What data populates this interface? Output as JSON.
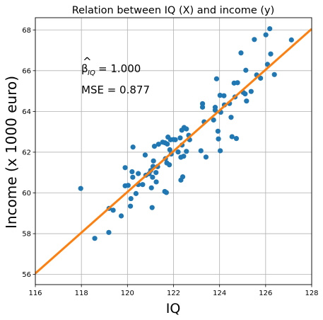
{
  "chart_data": {
    "type": "scatter",
    "title": "Relation between IQ (X) and income (y)",
    "xlabel": "IQ",
    "ylabel": "Income (x 1000 euro)",
    "xlim": [
      116,
      128
    ],
    "ylim": [
      55.5,
      68.6
    ],
    "xticks": [
      "116",
      "118",
      "120",
      "122",
      "124",
      "126",
      "128"
    ],
    "yticks": [
      "56",
      "58",
      "60",
      "62",
      "64",
      "66",
      "68"
    ],
    "xtick_values": [
      116,
      118,
      120,
      122,
      124,
      126,
      128
    ],
    "ytick_values": [
      56,
      58,
      60,
      62,
      64,
      66,
      68
    ],
    "grid": true,
    "annotations": {
      "beta_prefix": "β",
      "beta_hat": "^",
      "beta_sub": "IQ",
      "beta_value": " = 1.000",
      "mse": "MSE = 0.877"
    },
    "fit_line": {
      "color": "#ff7f0e",
      "points": [
        [
          116,
          56.05
        ],
        [
          128,
          68.05
        ]
      ]
    },
    "point_color": "#1f77b4",
    "points": [
      [
        117.97,
        60.22
      ],
      [
        118.58,
        57.77
      ],
      [
        119.19,
        58.06
      ],
      [
        119.2,
        59.24
      ],
      [
        119.38,
        59.15
      ],
      [
        119.73,
        58.87
      ],
      [
        119.9,
        61.24
      ],
      [
        119.9,
        60.35
      ],
      [
        120.03,
        60.37
      ],
      [
        120.13,
        59.35
      ],
      [
        120.15,
        59.72
      ],
      [
        120.2,
        61.04
      ],
      [
        120.23,
        60.77
      ],
      [
        120.24,
        62.25
      ],
      [
        120.37,
        59.97
      ],
      [
        120.47,
        60.41
      ],
      [
        120.47,
        60.95
      ],
      [
        120.66,
        60.41
      ],
      [
        120.77,
        61.86
      ],
      [
        120.8,
        60.87
      ],
      [
        120.94,
        60.94
      ],
      [
        121.01,
        61.1
      ],
      [
        121.04,
        60.25
      ],
      [
        121.07,
        59.28
      ],
      [
        121.09,
        60.77
      ],
      [
        121.11,
        61.3
      ],
      [
        121.13,
        61.57
      ],
      [
        121.17,
        62.29
      ],
      [
        121.24,
        61.0
      ],
      [
        121.25,
        60.54
      ],
      [
        121.31,
        61.29
      ],
      [
        121.35,
        62.39
      ],
      [
        121.53,
        62.49
      ],
      [
        121.62,
        60.07
      ],
      [
        121.63,
        62.46
      ],
      [
        121.65,
        61.68
      ],
      [
        121.69,
        60.02
      ],
      [
        121.71,
        61.47
      ],
      [
        121.73,
        62.4
      ],
      [
        121.76,
        62.74
      ],
      [
        121.82,
        61.38
      ],
      [
        121.84,
        62.12
      ],
      [
        121.87,
        62.61
      ],
      [
        121.9,
        61.91
      ],
      [
        122.0,
        62.62
      ],
      [
        122.08,
        62.61
      ],
      [
        122.2,
        62.01
      ],
      [
        122.29,
        62.7
      ],
      [
        122.32,
        61.75
      ],
      [
        122.32,
        60.63
      ],
      [
        122.36,
        63.08
      ],
      [
        122.37,
        62.35
      ],
      [
        122.4,
        60.79
      ],
      [
        122.44,
        61.8
      ],
      [
        122.46,
        63.21
      ],
      [
        122.56,
        63.14
      ],
      [
        122.56,
        62.04
      ],
      [
        122.66,
        62.83
      ],
      [
        122.7,
        62.61
      ],
      [
        123.19,
        62.07
      ],
      [
        123.26,
        64.38
      ],
      [
        123.26,
        64.21
      ],
      [
        123.33,
        63.49
      ],
      [
        123.41,
        61.76
      ],
      [
        123.74,
        63.58
      ],
      [
        123.81,
        64.2
      ],
      [
        123.81,
        64.06
      ],
      [
        123.87,
        65.6
      ],
      [
        123.93,
        63.03
      ],
      [
        123.95,
        62.65
      ],
      [
        124.02,
        64.79
      ],
      [
        124.03,
        62.07
      ],
      [
        124.05,
        63.96
      ],
      [
        124.19,
        64.77
      ],
      [
        124.21,
        64.32
      ],
      [
        124.43,
        64.39
      ],
      [
        124.5,
        63.71
      ],
      [
        124.54,
        62.76
      ],
      [
        124.63,
        65.39
      ],
      [
        124.67,
        64.71
      ],
      [
        124.73,
        62.67
      ],
      [
        124.78,
        65.41
      ],
      [
        124.93,
        66.87
      ],
      [
        125.03,
        64.93
      ],
      [
        125.11,
        64.86
      ],
      [
        125.14,
        66.02
      ],
      [
        125.17,
        64.51
      ],
      [
        125.37,
        64.98
      ],
      [
        125.51,
        67.53
      ],
      [
        125.61,
        65.79
      ],
      [
        125.78,
        65.63
      ],
      [
        126.01,
        67.76
      ],
      [
        126.08,
        66.31
      ],
      [
        126.18,
        68.06
      ],
      [
        126.22,
        66.82
      ],
      [
        126.38,
        65.81
      ],
      [
        127.12,
        67.51
      ]
    ]
  }
}
